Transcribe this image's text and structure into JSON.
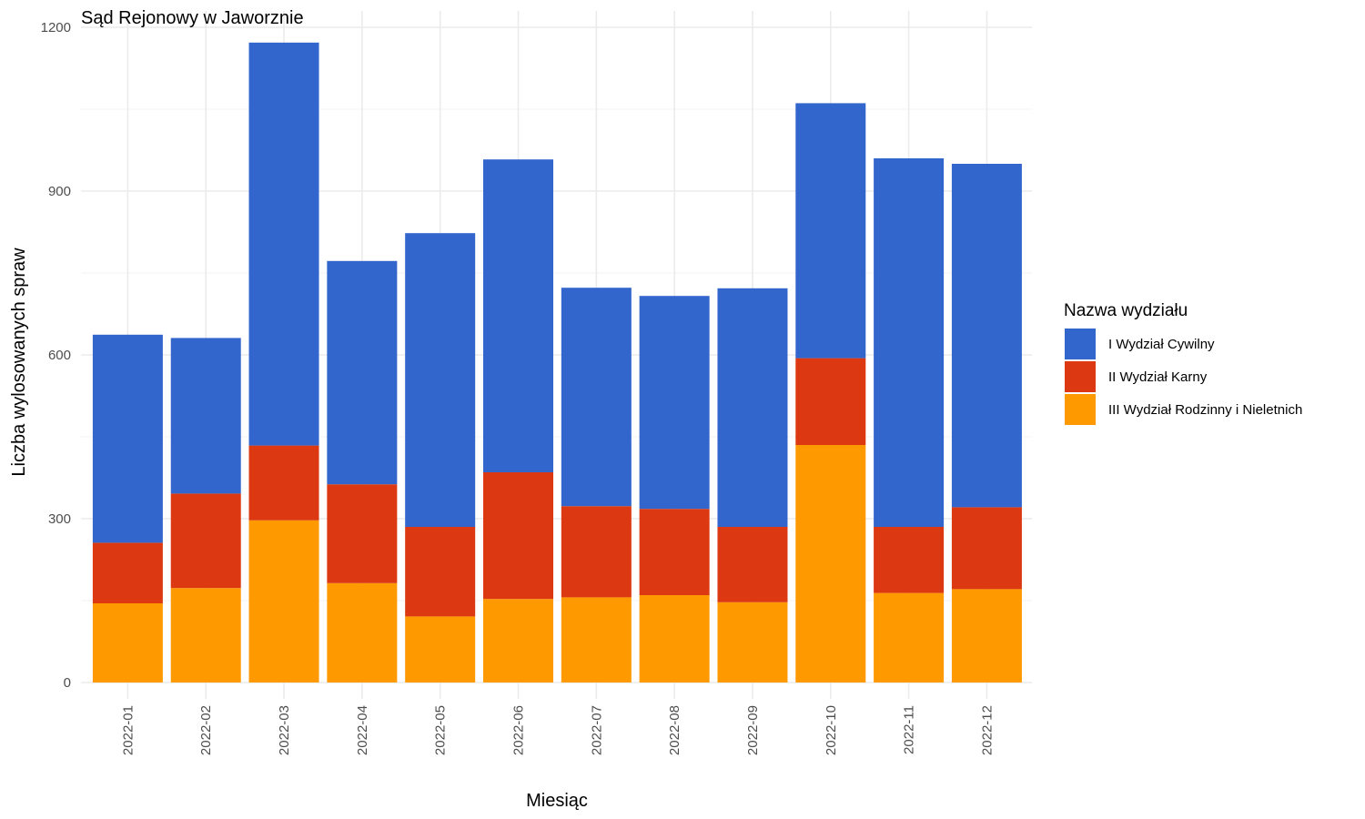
{
  "chart_data": {
    "type": "bar",
    "stacked": true,
    "title": "Sąd Rejonowy w Jaworznie",
    "xlabel": "Miesiąc",
    "ylabel": "Liczba wylosowanych spraw",
    "ylim": [
      0,
      1200
    ],
    "yticks": [
      0,
      300,
      600,
      900,
      1200
    ],
    "grid": true,
    "legend": {
      "title": "Nazwa wydziału",
      "position": "right"
    },
    "categories": [
      "2022-01",
      "2022-02",
      "2022-03",
      "2022-04",
      "2022-05",
      "2022-06",
      "2022-07",
      "2022-08",
      "2022-09",
      "2022-10",
      "2022-11",
      "2022-12"
    ],
    "series": [
      {
        "name": "I Wydział Cywilny",
        "color": "#3366CC",
        "values": [
          381,
          285,
          738,
          409,
          538,
          573,
          400,
          390,
          437,
          467,
          675,
          629
        ]
      },
      {
        "name": "II Wydział Karny",
        "color": "#DC3912",
        "values": [
          111,
          173,
          137,
          181,
          164,
          232,
          167,
          158,
          138,
          159,
          121,
          150
        ]
      },
      {
        "name": "III Wydział Rodzinny i Nieletnich",
        "color": "#FF9900",
        "values": [
          145,
          173,
          297,
          182,
          121,
          153,
          156,
          160,
          147,
          435,
          164,
          171
        ]
      }
    ]
  }
}
